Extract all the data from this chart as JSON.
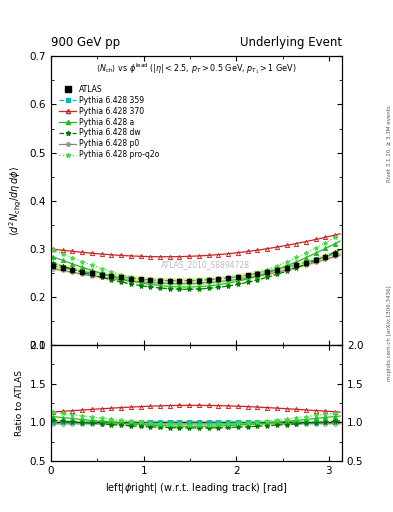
{
  "title_left": "900 GeV pp",
  "title_right": "Underlying Event",
  "xlabel": "left|#phi right| (w.r.t. leading track) [rad]",
  "ylabel_main": "<d^{2} N_{chg}/d#eta d#phi>",
  "ylabel_ratio": "Ratio to ATLAS",
  "watermark": "ATLAS_2010_S8894728",
  "right_label": "Rivet 3.1.10, ≥ 3.3M events",
  "right_label2": "mcplots.cern.ch [arXiv:1306.3436]",
  "ylim_main": [
    0.1,
    0.7
  ],
  "ylim_ratio": [
    0.5,
    2.0
  ],
  "xlim": [
    0.0,
    3.14159
  ],
  "series_colors": {
    "Pythia359": "#00bbbb",
    "Pythia370": "#cc2222",
    "Pythia_a": "#22bb22",
    "Pythia_dw": "#007700",
    "Pythia_p0": "#888888",
    "Pythia_proq2o": "#44dd44"
  },
  "atlas_band_color": "#eeee88",
  "n_points": 60
}
